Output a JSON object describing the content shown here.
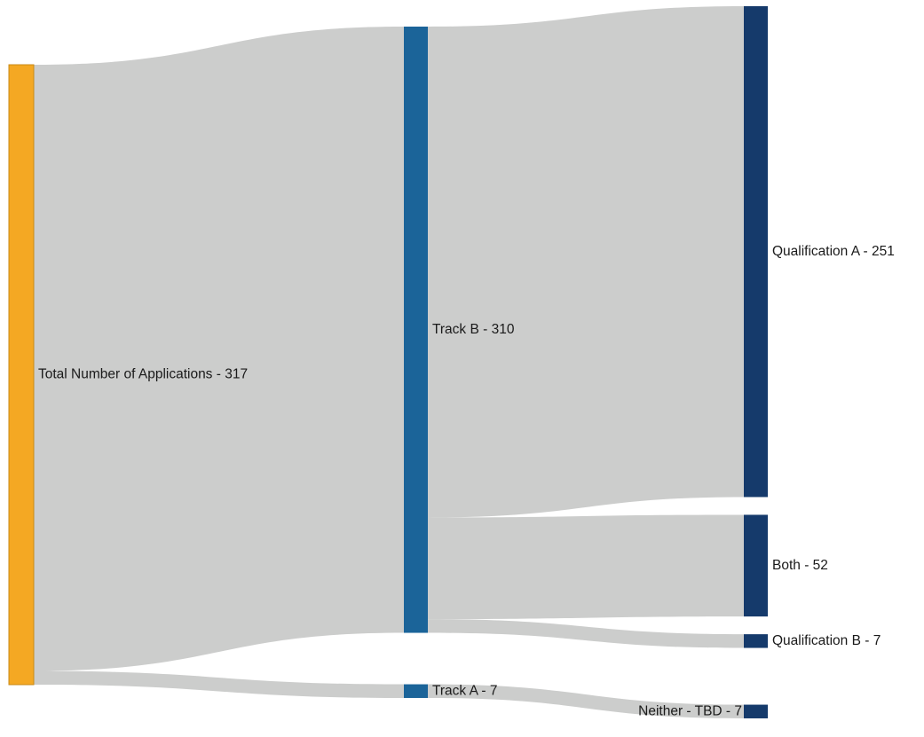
{
  "chart_data": {
    "type": "sankey",
    "title": "",
    "nodes": [
      {
        "id": "total",
        "label": "Total Number of Applications - 317",
        "value": 317,
        "column": 0,
        "color": "#F4A823"
      },
      {
        "id": "trackB",
        "label": "Track B - 310",
        "value": 310,
        "column": 1,
        "color": "#1B6499"
      },
      {
        "id": "trackA",
        "label": "Track A - 7",
        "value": 7,
        "column": 1,
        "color": "#1B6499"
      },
      {
        "id": "qualA",
        "label": "Qualification A - 251",
        "value": 251,
        "column": 2,
        "color": "#153A6B"
      },
      {
        "id": "both",
        "label": "Both - 52",
        "value": 52,
        "column": 2,
        "color": "#153A6B"
      },
      {
        "id": "qualB",
        "label": "Qualification B - 7",
        "value": 7,
        "column": 2,
        "color": "#153A6B"
      },
      {
        "id": "neither",
        "label": "Neither - TBD - 7",
        "value": 7,
        "column": 2,
        "color": "#153A6B"
      }
    ],
    "links": [
      {
        "source": "total",
        "target": "trackB",
        "value": 310
      },
      {
        "source": "total",
        "target": "trackA",
        "value": 7
      },
      {
        "source": "trackB",
        "target": "qualA",
        "value": 251
      },
      {
        "source": "trackB",
        "target": "both",
        "value": 52
      },
      {
        "source": "trackB",
        "target": "qualB",
        "value": 7
      },
      {
        "source": "trackA",
        "target": "neither",
        "value": 7
      }
    ],
    "link_color": "#CCCDCC"
  }
}
